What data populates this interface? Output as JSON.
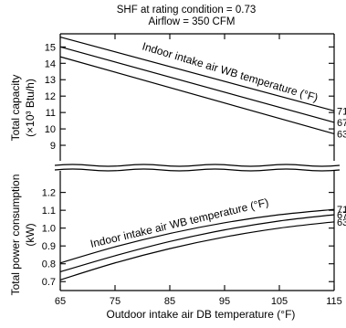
{
  "header": {
    "shf_line": "SHF at rating condition  = 0.73",
    "airflow_line": "Airflow = 350 CFM"
  },
  "chart_data": [
    {
      "type": "line",
      "ylabel_line1": "Total capacity",
      "ylabel_line2": "(×10³ Btu/h)",
      "annotation": "Indoor intake air WB temperature (°F)",
      "x_label_on_chart": "",
      "xlim": [
        65,
        115
      ],
      "ylim": [
        8.5,
        15.8
      ],
      "yticks": [
        9,
        10,
        11,
        12,
        13,
        14,
        15
      ],
      "grid": false,
      "series": [
        {
          "name": "71",
          "x": [
            65,
            115
          ],
          "y": [
            15.6,
            11.1
          ]
        },
        {
          "name": "67",
          "x": [
            65,
            115
          ],
          "y": [
            15.0,
            10.4
          ]
        },
        {
          "name": "63",
          "x": [
            65,
            115
          ],
          "y": [
            14.4,
            9.7
          ]
        }
      ]
    },
    {
      "type": "line",
      "ylabel_line1": "Total power consumption",
      "ylabel_line2": "(kW)",
      "annotation": "Indoor intake air WB temperature (°F)",
      "xlim": [
        65,
        115
      ],
      "ylim": [
        0.65,
        1.28
      ],
      "yticks": [
        0.7,
        0.8,
        0.9,
        1.0,
        1.1,
        1.2
      ],
      "grid": false,
      "series": [
        {
          "name": "71",
          "x": [
            65,
            75,
            85,
            95,
            105,
            115
          ],
          "y": [
            0.805,
            0.895,
            0.97,
            1.03,
            1.075,
            1.105
          ]
        },
        {
          "name": "67",
          "x": [
            65,
            75,
            85,
            95,
            105,
            115
          ],
          "y": [
            0.755,
            0.845,
            0.925,
            0.99,
            1.04,
            1.075
          ]
        },
        {
          "name": "63",
          "x": [
            65,
            75,
            85,
            95,
            105,
            115
          ],
          "y": [
            0.71,
            0.805,
            0.885,
            0.95,
            1.0,
            1.035
          ]
        }
      ]
    }
  ],
  "x_axis": {
    "ticks": [
      65,
      75,
      85,
      95,
      105,
      115
    ],
    "label": "Outdoor intake air DB temperature (°F)"
  }
}
